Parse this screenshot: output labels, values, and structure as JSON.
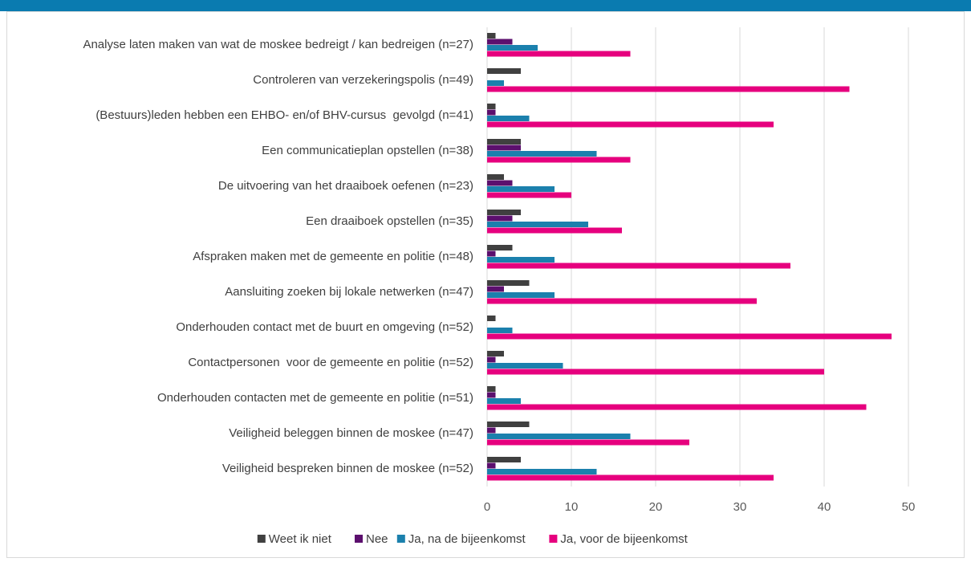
{
  "chart_data": {
    "type": "barh",
    "categories": [
      "Analyse laten maken van wat de moskee bedreigt / kan bedreigen (n=27)",
      "Controleren van verzekeringspolis (n=49)",
      "(Bestuurs)leden hebben een EHBO- en/of BHV-cursus  gevolgd (n=41)",
      "Een communicatieplan opstellen (n=38)",
      "De uitvoering van het draaiboek oefenen (n=23)",
      "Een draaiboek opstellen (n=35)",
      "Afspraken maken met de gemeente en politie (n=48)",
      "Aansluiting zoeken bij lokale netwerken (n=47)",
      "Onderhouden contact met de buurt en omgeving (n=52)",
      "Contactpersonen  voor de gemeente en politie (n=52)",
      "Onderhouden contacten met de gemeente en politie (n=51)",
      "Veiligheid beleggen binnen de moskee (n=47)",
      "Veiligheid bespreken binnen de moskee (n=52)"
    ],
    "series": [
      {
        "name": "Weet ik niet",
        "color": "#404040",
        "values": [
          1,
          4,
          1,
          4,
          2,
          4,
          3,
          5,
          1,
          2,
          1,
          5,
          4
        ]
      },
      {
        "name": "Nee",
        "color": "#5c0f6e",
        "values": [
          3,
          0,
          1,
          4,
          3,
          3,
          1,
          2,
          0,
          1,
          1,
          1,
          1
        ]
      },
      {
        "name": "Ja, na de bijeenkomst",
        "color": "#1b80ad",
        "values": [
          6,
          2,
          5,
          13,
          8,
          12,
          8,
          8,
          3,
          9,
          4,
          17,
          13
        ]
      },
      {
        "name": "Ja, voor de bijeenkomst",
        "color": "#e6007e",
        "values": [
          17,
          43,
          34,
          17,
          10,
          16,
          36,
          32,
          48,
          40,
          45,
          24,
          34
        ]
      }
    ],
    "xlim": [
      0,
      50
    ],
    "xticks": [
      0,
      10,
      20,
      30,
      40,
      50
    ],
    "grid": true,
    "legend": "bottom"
  }
}
